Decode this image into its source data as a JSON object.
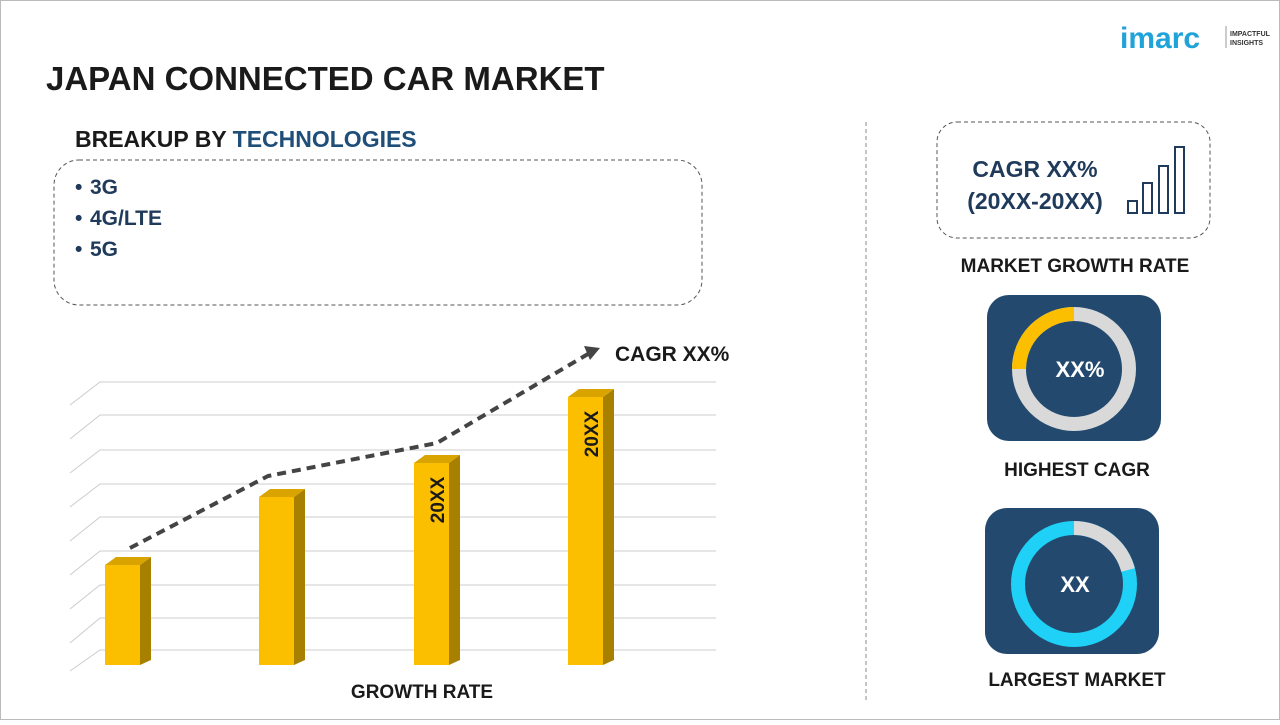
{
  "logo": {
    "name": "imarc",
    "tagline_1": "IMPACTFUL",
    "tagline_2": "INSIGHTS"
  },
  "title": "JAPAN CONNECTED CAR MARKET",
  "breakup": {
    "label": "BREAKUP BY",
    "highlight": "TECHNOLOGIES",
    "items": [
      "3G",
      "4G/LTE",
      "5G"
    ]
  },
  "growth_chart": {
    "cagr_label": "CAGR XX%",
    "bar_labels": [
      "20XX",
      "20XX"
    ],
    "axis_label": "GROWTH RATE"
  },
  "cards": [
    {
      "line_1": "CAGR XX%",
      "line_2": "(20XX-20XX)",
      "caption": "MARKET GROWTH RATE"
    },
    {
      "value": "XX%",
      "caption": "HIGHEST CAGR"
    },
    {
      "value": "XX",
      "caption": "LARGEST MARKET"
    }
  ]
}
